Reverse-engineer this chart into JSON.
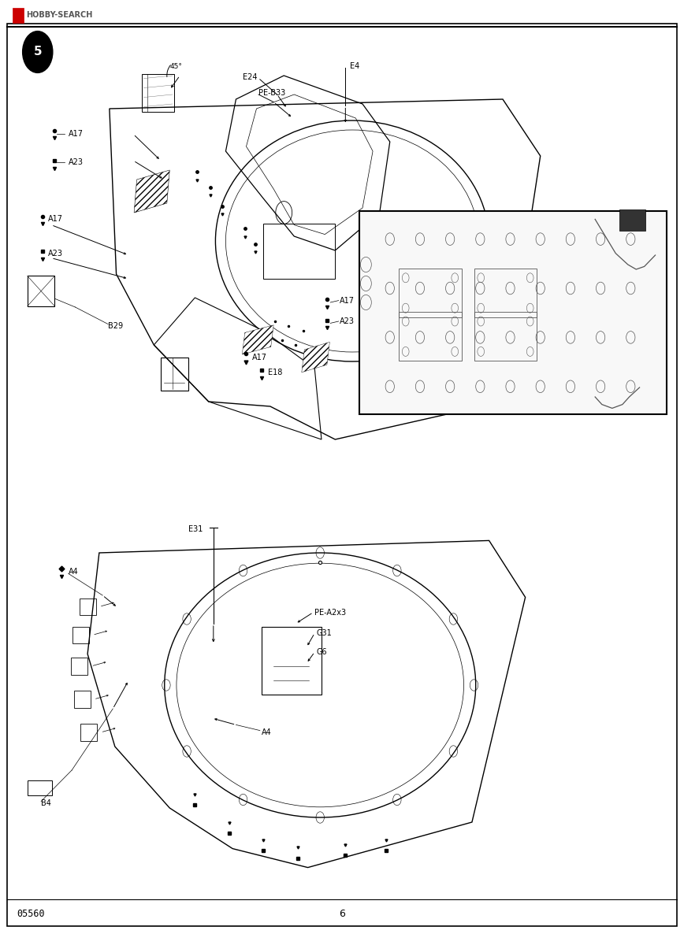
{
  "page_bg": "#ffffff",
  "border_color": "#000000",
  "text_color": "#000000",
  "logo_text": "HOBBY-SEARCH",
  "logo_color": "#cc0000",
  "step_number": "5",
  "page_number": "6",
  "product_code": "05560"
}
